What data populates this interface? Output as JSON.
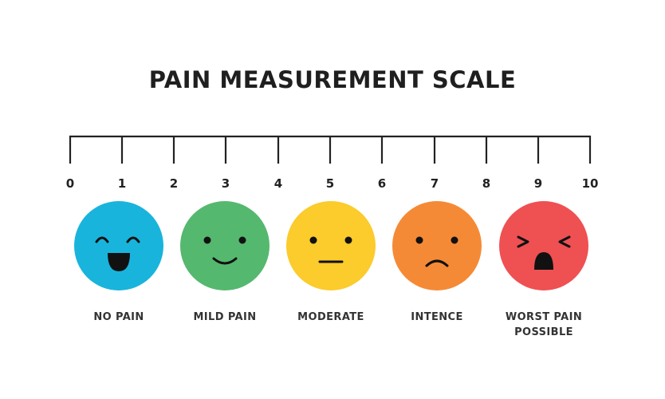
{
  "title": "PAIN MEASUREMENT SCALE",
  "scale": {
    "ticks": [
      "0",
      "1",
      "2",
      "3",
      "4",
      "5",
      "6",
      "7",
      "8",
      "9",
      "10"
    ]
  },
  "faces": [
    {
      "name": "no-pain",
      "color": "#19b4dc",
      "expression": "laughing",
      "label": "NO PAIN",
      "scale_value": "1"
    },
    {
      "name": "mild-pain",
      "color": "#55b86f",
      "expression": "smiling",
      "label": "MILD PAIN",
      "scale_value": "3"
    },
    {
      "name": "moderate",
      "color": "#fccb2c",
      "expression": "neutral",
      "label": "MODERATE",
      "scale_value": "5"
    },
    {
      "name": "intence",
      "color": "#f58a36",
      "expression": "frowning",
      "label": "INTENCE",
      "scale_value": "7"
    },
    {
      "name": "worst-pain",
      "color": "#ef5052",
      "expression": "crying",
      "label_line1": "WORST PAIN",
      "label_line2": "POSSIBLE",
      "scale_value": "9"
    }
  ]
}
